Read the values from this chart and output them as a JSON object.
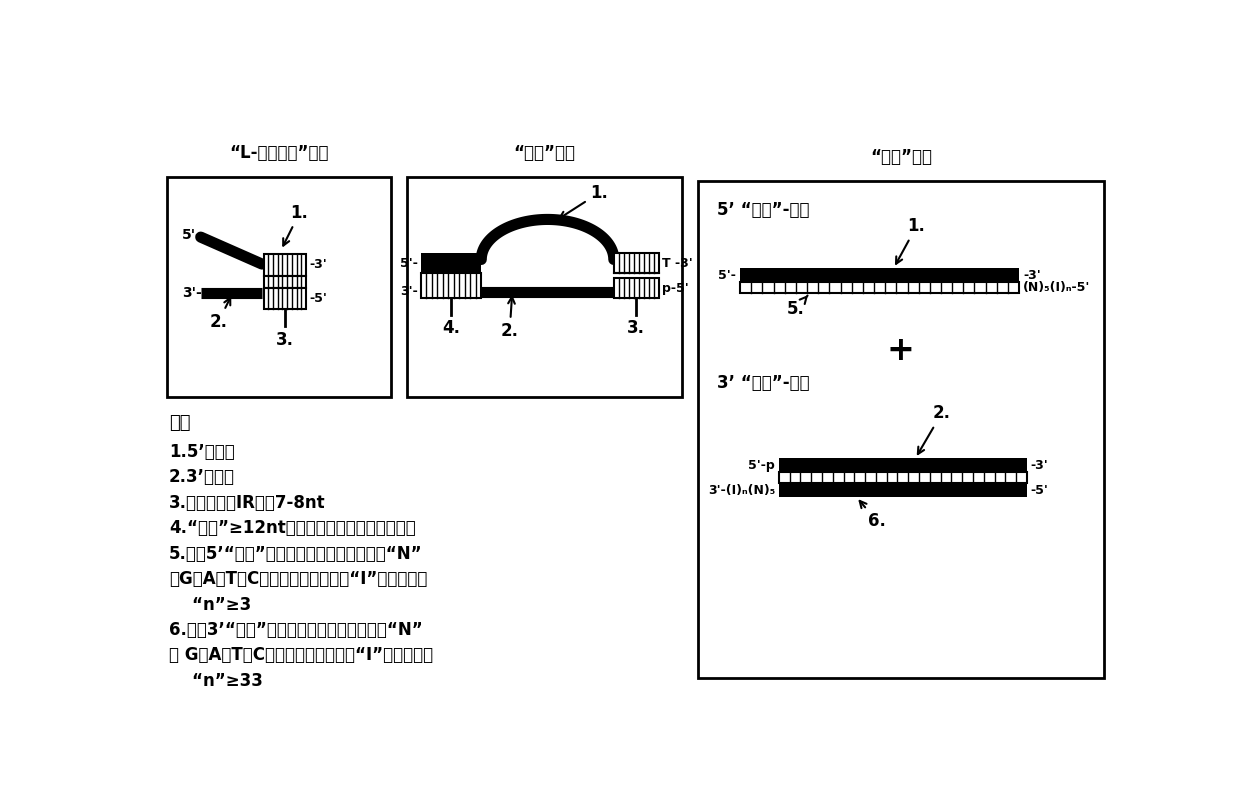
{
  "title1": "“L-寸核苷酸”接头",
  "title2": "“鼓泡”接头",
  "title3": "“夹钔”接头",
  "legend_title": "图例",
  "leg1": "1.5’半接头",
  "leg2": "2.3’半接头",
  "leg3": "3.反向重复（IR）：7-8nt",
  "leg4": "4.“扣环”≥12nt，将接头的两条链保持在一起",
  "leg5a": "5.用于5’“夹钔”接头的辅助寸核苷酸，其中“N”",
  "leg5b": "为G，A，T，C核苷酸中的任一个，“I”是肌苷，且",
  "leg5c": "    “n”≥3",
  "leg6a": "6.用于3’“夹钔”接头的辅助寸核苷酸，其中“N”",
  "leg6b": "为 G，A，T，C核苷酸中的任一个，“I”是肌苷，且",
  "leg6c": "    “n”≥33",
  "clamp5_label": "5’ “夹钔”-接头",
  "clamp3_label": "3’ “夹钔”-接头",
  "bg_color": "#ffffff",
  "black": "#000000"
}
